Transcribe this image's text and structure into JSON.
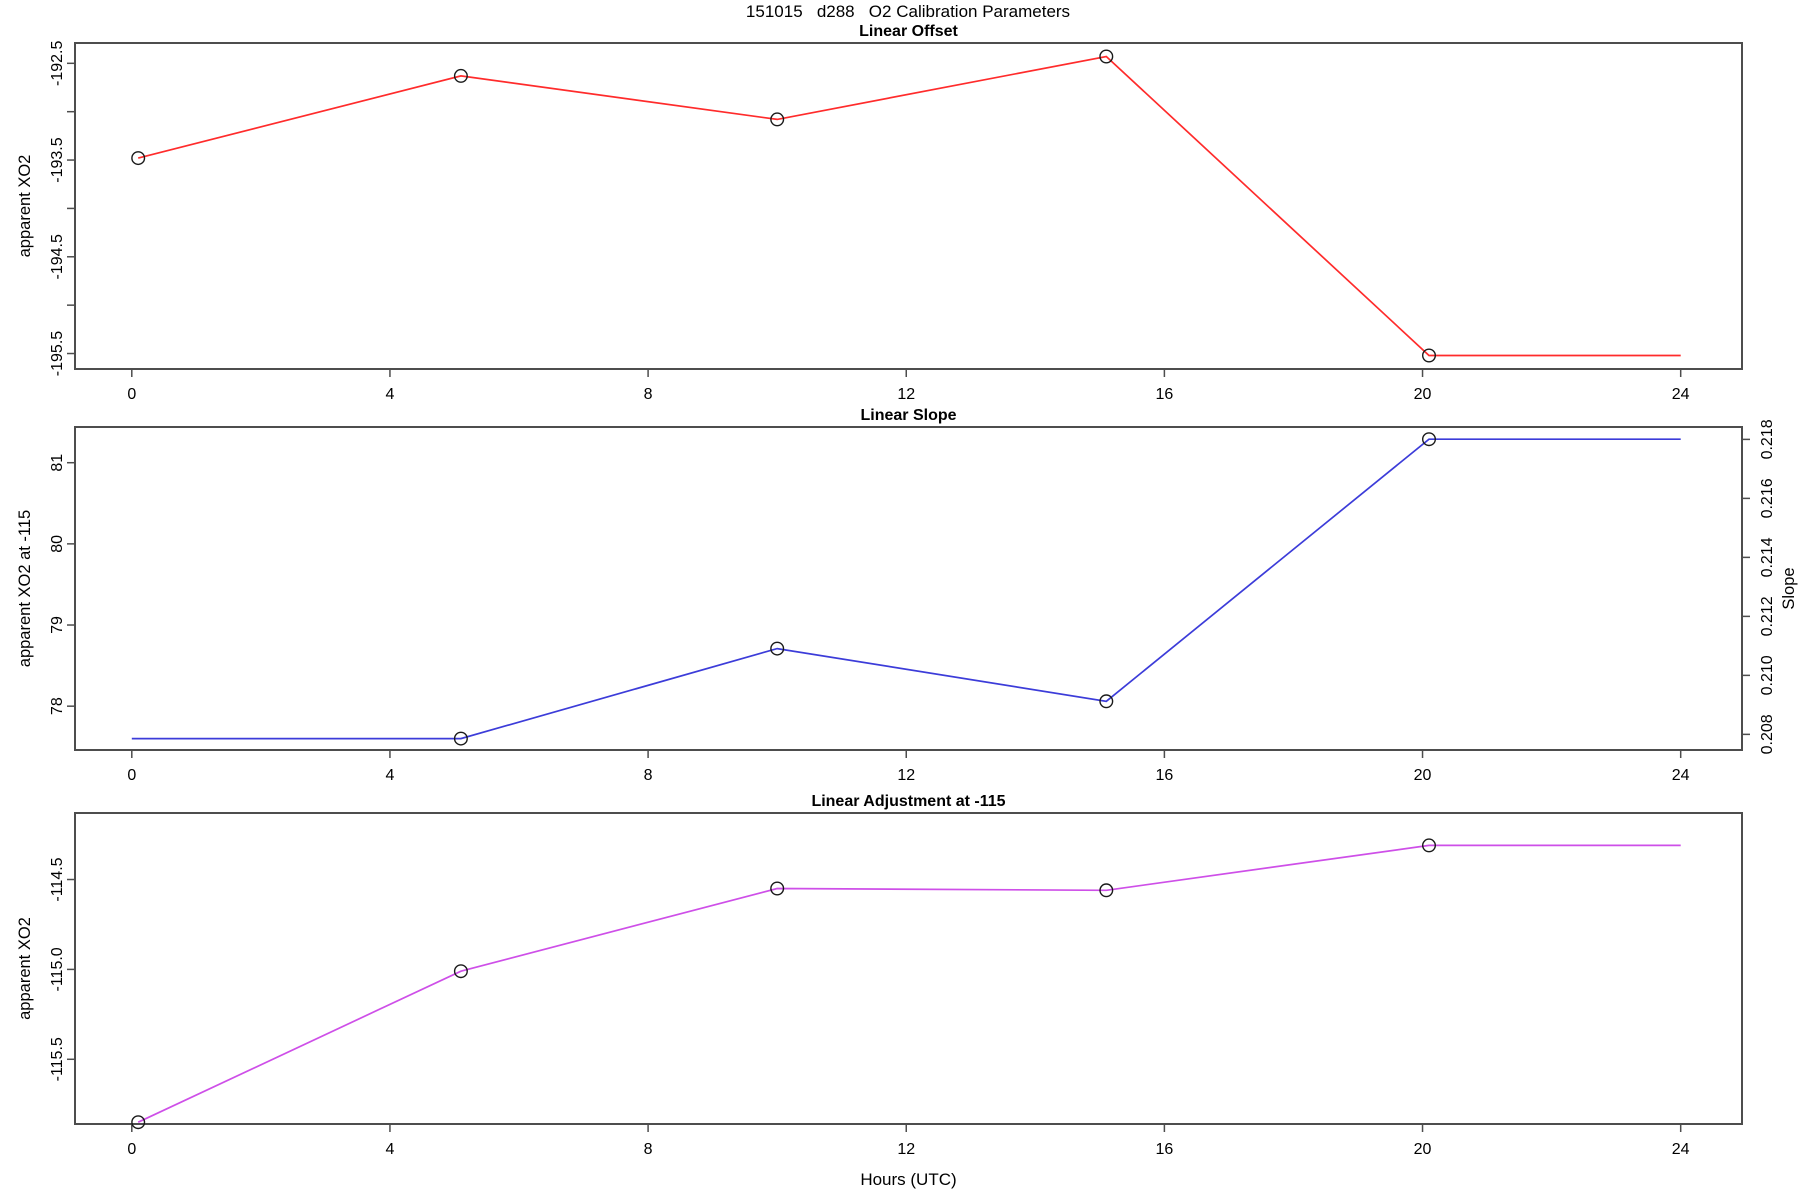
{
  "page": {
    "main_title": "151015   d288   O2 Calibration Parameters"
  },
  "colors": {
    "offset_line": "#ff2b2b",
    "slope_line": "#3c3cd9",
    "adjustment_line": "#ce4fe8",
    "marker_stroke": "#1a1a1a",
    "axis": "#4d4d4d",
    "text": "#000000",
    "background": "#ffffff"
  },
  "chart_data": [
    {
      "type": "line",
      "title": "Linear Offset",
      "ylabel": "apparent XO2",
      "xlabel": "",
      "xlim": [
        -0.88,
        24.95
      ],
      "ylim": [
        -195.66,
        -192.29
      ],
      "grid": false,
      "xticks": {
        "values": [
          0,
          4,
          8,
          12,
          16,
          20,
          24
        ],
        "labels": [
          "0",
          "4",
          "8",
          "12",
          "16",
          "20",
          "24"
        ]
      },
      "yticks": {
        "values": [
          -192.5,
          -193.0,
          -193.5,
          -194.0,
          -194.5,
          -195.0,
          -195.5
        ],
        "labels": [
          "-192.5",
          "",
          "-193.5",
          "",
          "-194.5",
          "",
          "-195.5"
        ]
      },
      "series": [
        {
          "name": "linear-offset",
          "color_key": "offset_line",
          "x": [
            0.1,
            5.1,
            10.0,
            15.1,
            20.1,
            24.0
          ],
          "y": [
            -193.48,
            -192.63,
            -193.08,
            -192.43,
            -195.52,
            -195.52
          ],
          "markers": [
            true,
            true,
            true,
            true,
            true,
            false
          ]
        }
      ]
    },
    {
      "type": "line",
      "title": "Linear Slope",
      "ylabel": "apparent XO2 at -115",
      "xlabel": "",
      "xlim": [
        -0.88,
        24.95
      ],
      "ylim": [
        77.46,
        81.44
      ],
      "grid": false,
      "xticks": {
        "values": [
          0,
          4,
          8,
          12,
          16,
          20,
          24
        ],
        "labels": [
          "0",
          "4",
          "8",
          "12",
          "16",
          "20",
          "24"
        ]
      },
      "yticks": {
        "values": [
          78,
          79,
          80,
          81
        ],
        "labels": [
          "78",
          "79",
          "80",
          "81"
        ]
      },
      "right_axis": {
        "label": "Slope",
        "lim": [
          0.20747,
          0.21842
        ],
        "ticks": {
          "values": [
            0.208,
            0.21,
            0.212,
            0.214,
            0.216,
            0.218
          ],
          "labels": [
            "0.208",
            "0.210",
            "0.212",
            "0.214",
            "0.216",
            "0.218"
          ]
        }
      },
      "series": [
        {
          "name": "linear-slope",
          "color_key": "slope_line",
          "x": [
            0.0,
            5.1,
            10.0,
            15.1,
            20.1,
            24.0
          ],
          "y": [
            77.6,
            77.6,
            78.71,
            78.06,
            81.29,
            81.29
          ],
          "slope_values": [
            0.2078,
            0.2078,
            0.2109,
            0.2091,
            0.218,
            0.218
          ],
          "markers": [
            false,
            true,
            true,
            true,
            true,
            false
          ]
        }
      ]
    },
    {
      "type": "line",
      "title": "Linear Adjustment at -115",
      "ylabel": "apparent XO2",
      "xlabel": "Hours (UTC)",
      "xlim": [
        -0.88,
        24.95
      ],
      "ylim": [
        -115.86,
        -114.13
      ],
      "grid": false,
      "xticks": {
        "values": [
          0,
          4,
          8,
          12,
          16,
          20,
          24
        ],
        "labels": [
          "0",
          "4",
          "8",
          "12",
          "16",
          "20",
          "24"
        ]
      },
      "yticks": {
        "values": [
          -114.5,
          -115.0,
          -115.5
        ],
        "labels": [
          "-114.5",
          "-115.0",
          "-115.5"
        ]
      },
      "series": [
        {
          "name": "linear-adjustment",
          "color_key": "adjustment_line",
          "x": [
            0.1,
            5.1,
            10.0,
            15.1,
            20.1,
            24.0
          ],
          "y": [
            -115.85,
            -115.01,
            -114.55,
            -114.56,
            -114.31,
            -114.31
          ],
          "markers": [
            true,
            true,
            true,
            true,
            true,
            false
          ]
        }
      ]
    }
  ]
}
